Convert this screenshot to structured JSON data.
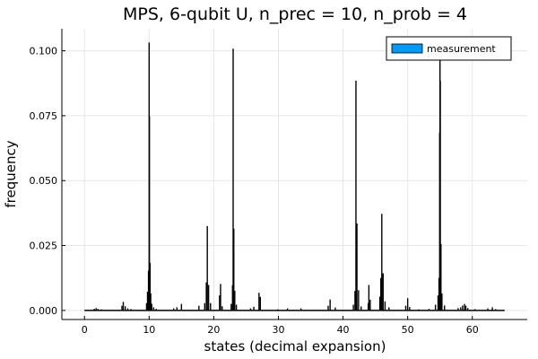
{
  "chart_data": {
    "type": "bar",
    "title": "MPS, 6-qubit U, n_prec = 10, n_prob = 4",
    "xlabel": "states (decimal expansion)",
    "ylabel": "frequency",
    "xlim": [
      -3.5,
      68.5
    ],
    "ylim": [
      -0.0035,
      0.1085
    ],
    "xticks": [
      0,
      10,
      20,
      30,
      40,
      50,
      60
    ],
    "yticks": [
      0.0,
      0.025,
      0.05,
      0.075,
      0.1
    ],
    "ytick_labels": [
      "0.000",
      "0.025",
      "0.050",
      "0.075",
      "0.100"
    ],
    "grid": true,
    "legend": {
      "position": "top-right",
      "entries": [
        {
          "name": "measurement",
          "color": "#009af9"
        }
      ]
    },
    "series": [
      {
        "name": "measurement",
        "x": [
          1.5,
          1.8,
          2.1,
          2.6,
          5.8,
          6.0,
          6.3,
          6.7,
          7.2,
          9.6,
          9.75,
          9.9,
          10.0,
          10.05,
          10.15,
          10.25,
          10.4,
          10.7,
          11.1,
          13.8,
          14.3,
          15.0,
          17.7,
          18.6,
          18.85,
          19.0,
          19.2,
          19.5,
          20.9,
          21.05,
          21.3,
          22.7,
          22.9,
          23.0,
          23.1,
          23.25,
          23.5,
          25.7,
          26.2,
          27.0,
          27.2,
          29.9,
          31.4,
          33.5,
          37.7,
          38.0,
          38.8,
          41.6,
          41.85,
          42.0,
          42.15,
          42.4,
          42.8,
          43.9,
          44.0,
          44.2,
          45.7,
          45.85,
          46.0,
          46.2,
          46.5,
          47.1,
          49.7,
          50.0,
          50.3,
          51.7,
          53.3,
          54.3,
          54.7,
          54.85,
          54.95,
          55.0,
          55.05,
          55.15,
          55.3,
          55.7,
          57.8,
          58.2,
          58.5,
          58.8,
          59.0,
          59.3,
          60.4,
          62.4,
          63.1,
          63.6
        ],
        "values": [
          0.0006,
          0.0009,
          0.0006,
          0.0004,
          0.0018,
          0.0033,
          0.0016,
          0.0008,
          0.0005,
          0.0028,
          0.0072,
          0.0153,
          0.1032,
          0.0748,
          0.0183,
          0.0065,
          0.0026,
          0.0012,
          0.0006,
          0.0008,
          0.0012,
          0.0025,
          0.0018,
          0.0028,
          0.0108,
          0.0325,
          0.0098,
          0.0028,
          0.0058,
          0.0102,
          0.0016,
          0.0025,
          0.0097,
          0.1008,
          0.0315,
          0.0076,
          0.0022,
          0.0008,
          0.0014,
          0.0068,
          0.0052,
          0.0004,
          0.0008,
          0.0008,
          0.0018,
          0.0042,
          0.0011,
          0.0022,
          0.0075,
          0.0885,
          0.0335,
          0.0078,
          0.0015,
          0.0028,
          0.0098,
          0.0041,
          0.0053,
          0.0125,
          0.0372,
          0.0143,
          0.0035,
          0.0012,
          0.0018,
          0.0047,
          0.0013,
          0.0004,
          0.0006,
          0.0022,
          0.0058,
          0.0125,
          0.0685,
          0.1055,
          0.0885,
          0.0256,
          0.0065,
          0.0019,
          0.0009,
          0.0012,
          0.0019,
          0.0025,
          0.0018,
          0.0009,
          0.0005,
          0.0008,
          0.0012,
          0.0005
        ]
      }
    ]
  }
}
